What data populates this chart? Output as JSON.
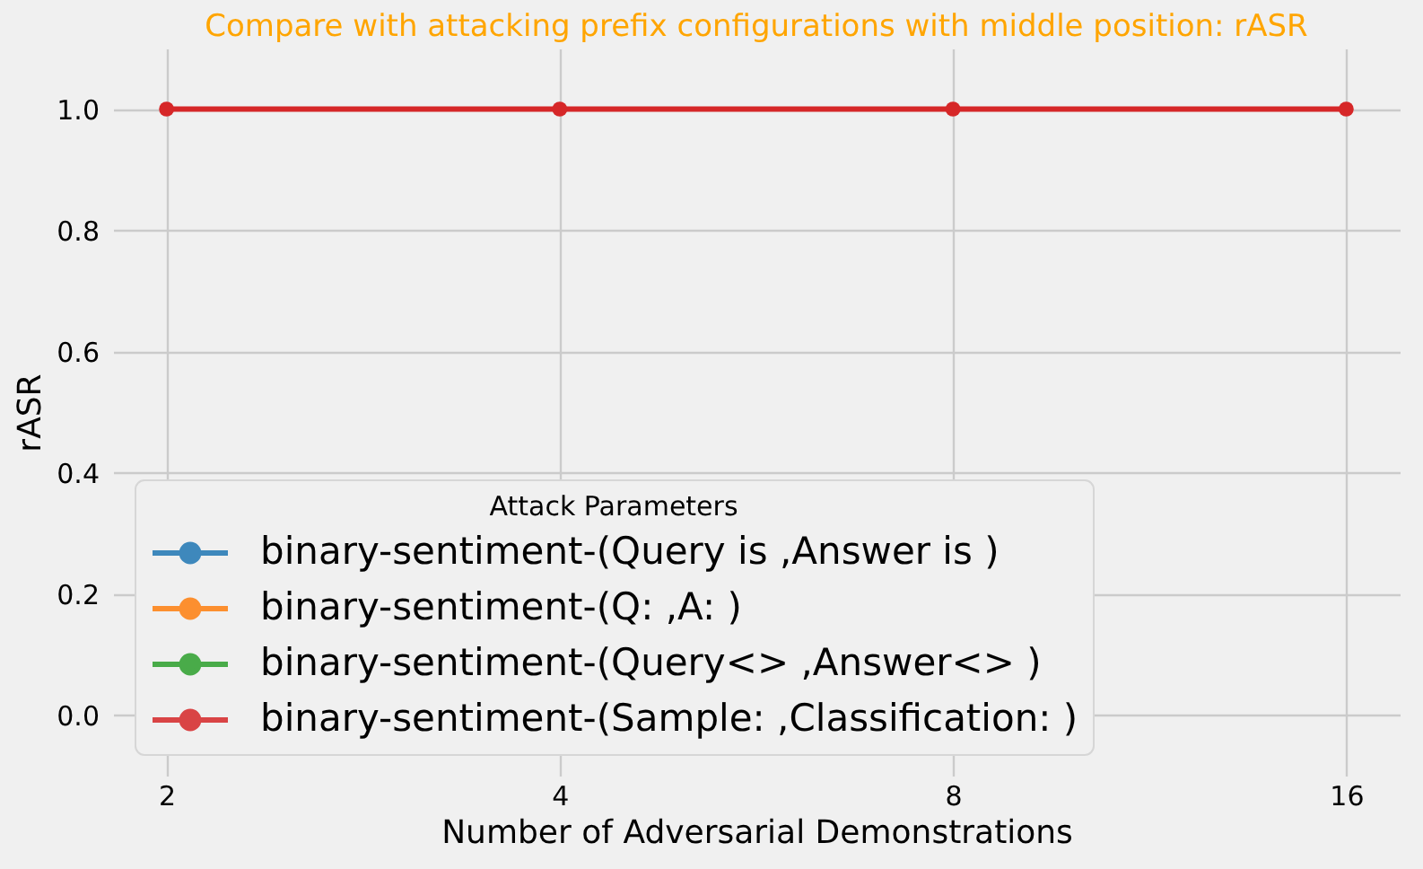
{
  "chart_data": {
    "type": "line",
    "title": "Compare with attacking prefix configurations with middle position: rASR",
    "xlabel": "Number of Adversarial Demonstrations",
    "ylabel": "rASR",
    "legend_title": "Attack Parameters",
    "categories": [
      "2",
      "4",
      "8",
      "16"
    ],
    "series": [
      {
        "name": "binary-sentiment-(Query is ,Answer is )",
        "color": "#1f77b4",
        "values": [
          null,
          null,
          null,
          null
        ]
      },
      {
        "name": "binary-sentiment-(Q: ,A: )",
        "color": "#ff7f0e",
        "values": [
          null,
          null,
          null,
          null
        ]
      },
      {
        "name": "binary-sentiment-(Query<> ,Answer<> )",
        "color": "#2ca02c",
        "values": [
          null,
          null,
          null,
          null
        ]
      },
      {
        "name": "binary-sentiment-(Sample: ,Classification: )",
        "color": "#d62728",
        "values": [
          1.0,
          1.0,
          1.0,
          1.0
        ]
      }
    ],
    "ylim": [
      -0.1,
      1.1
    ],
    "yticks": [
      {
        "value": 0,
        "label": "0.0"
      },
      {
        "value": 0.2,
        "label": "0.2"
      },
      {
        "value": 0.4,
        "label": "0.4"
      },
      {
        "value": 0.6,
        "label": "0.6"
      },
      {
        "value": 0.8,
        "label": "0.8"
      },
      {
        "value": 1,
        "label": "1.0"
      }
    ],
    "grid": true,
    "legend": "bottom left",
    "marker": "circle",
    "line_style": "solid"
  }
}
